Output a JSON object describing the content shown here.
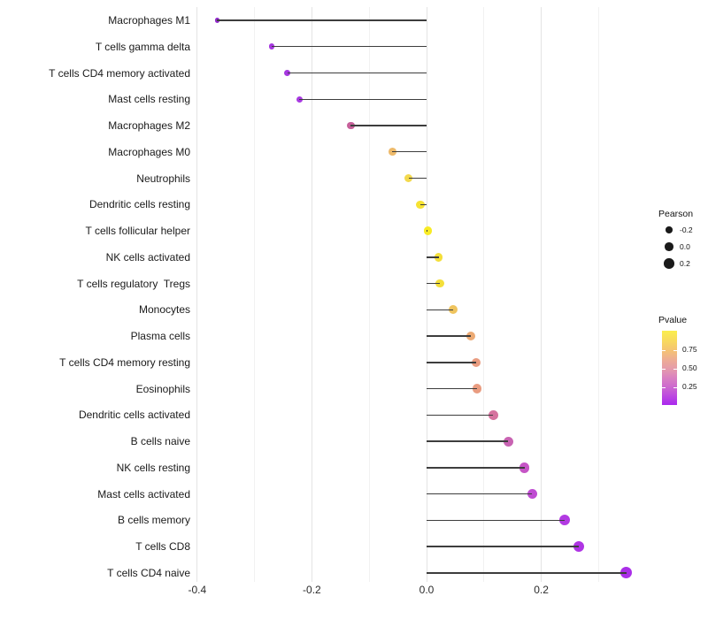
{
  "chart_data": {
    "type": "scatter",
    "variant": "lollipop",
    "title": "",
    "xlabel": "",
    "ylabel": "",
    "categories": [
      "Macrophages M1",
      "T cells gamma delta",
      "T cells CD4 memory activated",
      "Mast cells resting",
      "Macrophages M2",
      "Macrophages M0",
      "Neutrophils",
      "Dendritic cells resting",
      "T cells follicular helper",
      "NK cells activated",
      "T cells regulatory  Tregs",
      "Monocytes",
      "Plasma cells",
      "T cells CD4 memory resting",
      "Eosinophils",
      "Dendritic cells activated",
      "B cells naive",
      "NK cells resting",
      "Mast cells activated",
      "B cells memory",
      "T cells CD8",
      "T cells CD4 naive"
    ],
    "series": [
      {
        "name": "Pearson",
        "values": [
          -0.365,
          -0.27,
          -0.243,
          -0.222,
          -0.132,
          -0.06,
          -0.031,
          -0.011,
          0.002,
          0.021,
          0.023,
          0.047,
          0.077,
          0.086,
          0.088,
          0.116,
          0.142,
          0.171,
          0.184,
          0.24,
          0.265,
          0.348
        ]
      }
    ],
    "point_colors": [
      "#9229cc",
      "#a637e0",
      "#a637e0",
      "#a83ae2",
      "#c6609a",
      "#eeba6a",
      "#f3d94d",
      "#f6e232",
      "#f8eb25",
      "#f4df3a",
      "#f4df3a",
      "#efc45e",
      "#ecaa74",
      "#e99c80",
      "#e99c80",
      "#d6739f",
      "#c863b2",
      "#c655c6",
      "#bf4cd2",
      "#b23ae2",
      "#af34e4",
      "#aa2ee8"
    ],
    "stem_color": "#3d3d3d",
    "baseline_x": 0.0,
    "xlim": [
      -0.447,
      0.405
    ],
    "x_major_ticks": [
      -0.4,
      -0.2,
      0.0,
      0.2
    ],
    "x_tick_labels": [
      "-0.4",
      "-0.2",
      "0.0",
      "0.2"
    ],
    "x_minor_ticks": [
      -0.3,
      -0.1,
      0.1,
      0.3
    ],
    "grid": "vertical only, light gray, major + minor",
    "legend_position": "right",
    "legend": {
      "size": {
        "title": "Pearson",
        "entries": [
          {
            "label": "-0.2",
            "value": -0.2
          },
          {
            "label": "0.0",
            "value": 0.0
          },
          {
            "label": "0.2",
            "value": 0.2
          }
        ],
        "dot_color": "#1a1a1a"
      },
      "color": {
        "title": "Pvalue",
        "tick_labels": [
          "0.75",
          "0.50",
          "0.25"
        ],
        "tick_fractions_from_top": [
          0.262,
          0.512,
          0.762
        ],
        "gradient_top_color": "#faee4d",
        "gradient_mid_color": "#e59cab",
        "gradient_bottom_color": "#a928ee"
      }
    }
  }
}
